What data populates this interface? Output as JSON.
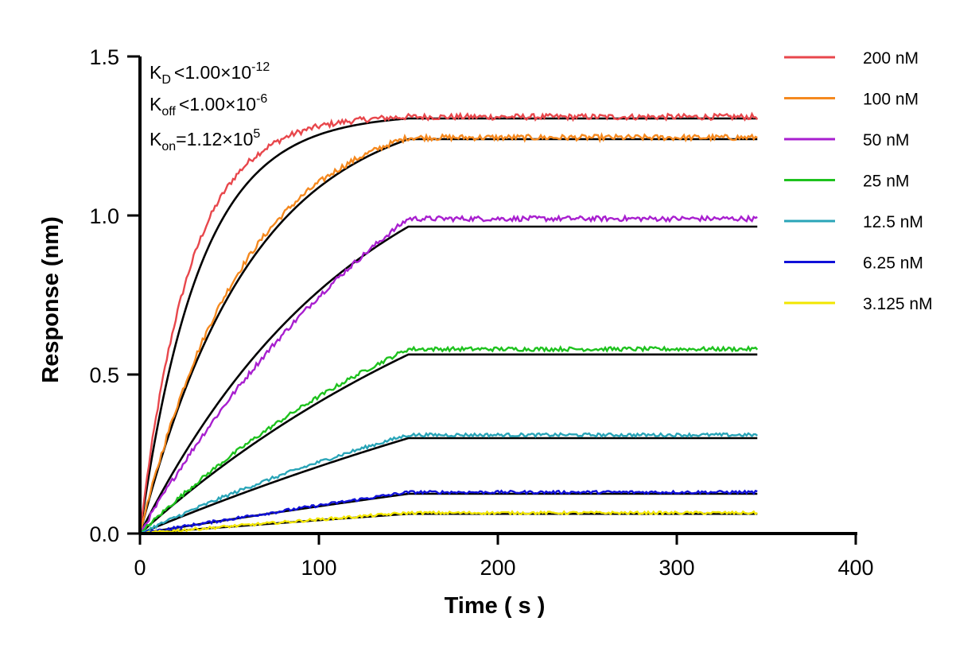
{
  "chart_data": {
    "type": "line",
    "title": "",
    "xlabel": "Time ( s )",
    "ylabel": "Response (nm)",
    "xlim": [
      0,
      400
    ],
    "ylim": [
      0,
      1.5
    ],
    "x_ticks": [
      "0",
      "100",
      "200",
      "300",
      "400"
    ],
    "y_ticks": [
      "0.0",
      "0.5",
      "1.0",
      "1.5"
    ],
    "grid": false,
    "legend_position": "top-right",
    "association_end_s": 150,
    "experiment_end_s": 345,
    "annotations": {
      "kd": {
        "main": "K",
        "sub": "D",
        "rel": "<",
        "value": "1.00×10",
        "exp": "-12"
      },
      "koff": {
        "main": "K",
        "sub": "off",
        "rel": "<",
        "value": "1.00×10",
        "exp": "-6"
      },
      "kon": {
        "main": "K",
        "sub": "on",
        "rel": "=",
        "value": "1.12×10",
        "exp": "5"
      }
    },
    "fit_color": "#000000",
    "series": [
      {
        "name": "200 nM",
        "color": "#e8474c",
        "plateau": 1.31,
        "fit_plateau": 1.305,
        "rate": 0.036,
        "fit_rate": 0.03
      },
      {
        "name": "100 nM",
        "color": "#f5891f",
        "plateau": 1.245,
        "fit_plateau": 1.24,
        "rate": 0.017,
        "fit_rate": 0.016
      },
      {
        "name": "50 nM",
        "color": "#a81fcf",
        "plateau": 0.99,
        "fit_plateau": 0.965,
        "rate": 0.0055,
        "fit_rate": 0.0082
      },
      {
        "name": "25 nM",
        "color": "#1ec21e",
        "plateau": 0.58,
        "fit_plateau": 0.563,
        "rate": 0.0048,
        "fit_rate": 0.0042
      },
      {
        "name": "12.5 nM",
        "color": "#2aa5b8",
        "plateau": 0.31,
        "fit_plateau": 0.3,
        "rate": 0.0036,
        "fit_rate": 0.0022
      },
      {
        "name": "6.25 nM",
        "color": "#1010d8",
        "plateau": 0.13,
        "fit_plateau": 0.125,
        "rate": 0.0008,
        "fit_rate": 0.0011
      },
      {
        "name": "3.125 nM",
        "color": "#f2e600",
        "plateau": 0.065,
        "fit_plateau": 0.062,
        "rate": 0.0008,
        "fit_rate": 0.0007
      }
    ]
  }
}
